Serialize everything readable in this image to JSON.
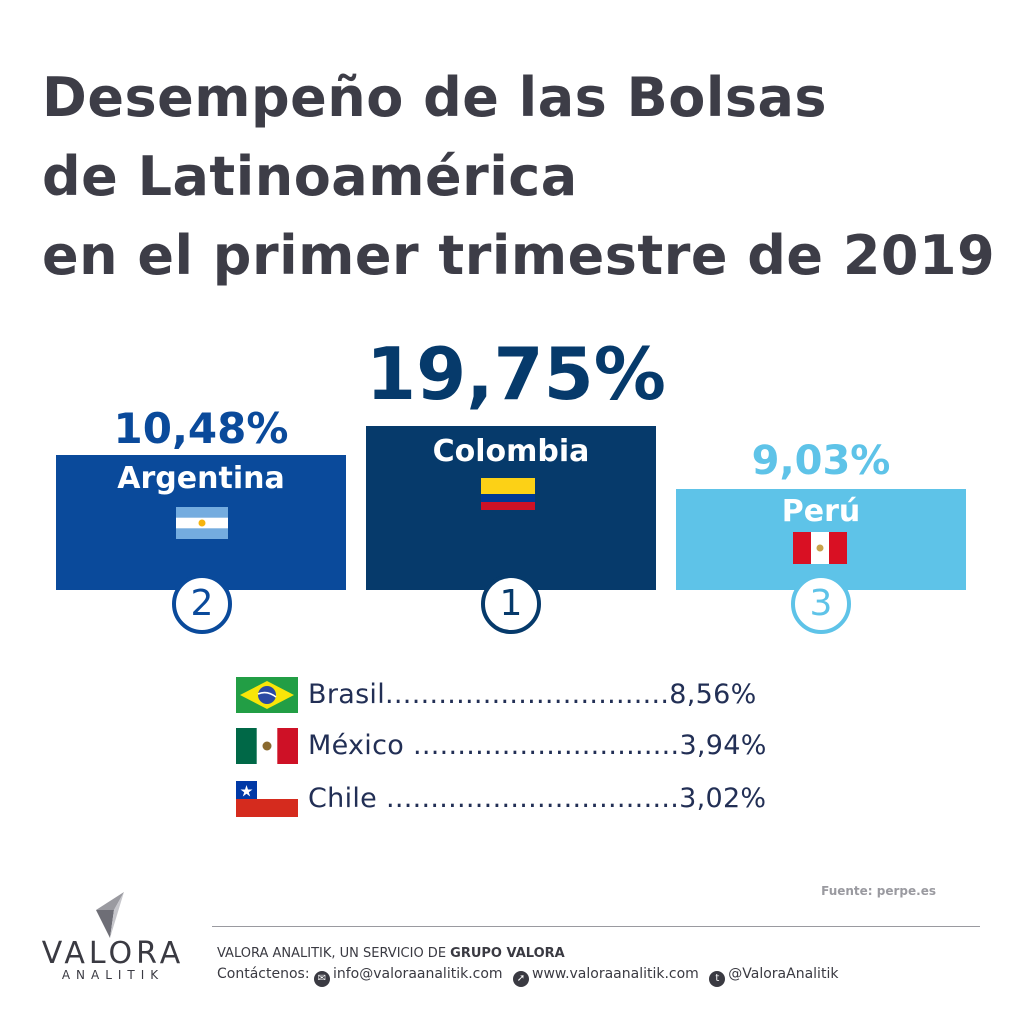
{
  "title_lines": [
    "Desempeño de las Bolsas",
    "de Latinoamérica",
    "en el primer trimestre de 2019"
  ],
  "colors": {
    "argentina": "#0a4a9b",
    "colombia": "#063a6b",
    "peru": "#5ec3e8",
    "text": "#3d3d47",
    "list_text": "#222f55"
  },
  "chart_data": {
    "type": "bar",
    "title": "Desempeño de las Bolsas de Latinoamérica en el primer trimestre de 2019",
    "categories": [
      "Argentina",
      "Colombia",
      "Perú",
      "Brasil",
      "México",
      "Chile"
    ],
    "values": [
      10.48,
      19.75,
      9.03,
      8.56,
      3.94,
      3.02
    ],
    "unit": "%",
    "podium": [
      {
        "country": "Argentina",
        "value_label": "10,48%",
        "rank": "2",
        "flag_icon": "argentina-flag-icon"
      },
      {
        "country": "Colombia",
        "value_label": "19,75%",
        "rank": "1",
        "flag_icon": "colombia-flag-icon"
      },
      {
        "country": "Perú",
        "value_label": "9,03%",
        "rank": "3",
        "flag_icon": "peru-flag-icon"
      }
    ],
    "others": [
      {
        "country": "Brasil",
        "dots": "................................",
        "value_label": "8,56%",
        "flag_icon": "brazil-flag-icon"
      },
      {
        "country": "México",
        "dots": " ..............................",
        "value_label": "3,94%",
        "flag_icon": "mexico-flag-icon"
      },
      {
        "country": "Chile",
        "dots": " .................................",
        "value_label": "3,02%",
        "flag_icon": "chile-flag-icon"
      }
    ]
  },
  "source": "Fuente: perpe.es",
  "footer": {
    "logo_main": "VALORA",
    "logo_sub": "ANALITIK",
    "tagline_prefix": "VALORA ANALITIK, UN SERVICIO DE ",
    "tagline_brand": "GRUPO VALORA",
    "contact_label": "Contáctenos:",
    "email": "info@valoraanalitik.com",
    "website": "www.valoraanalitik.com",
    "twitter": "@ValoraAnalitik"
  }
}
